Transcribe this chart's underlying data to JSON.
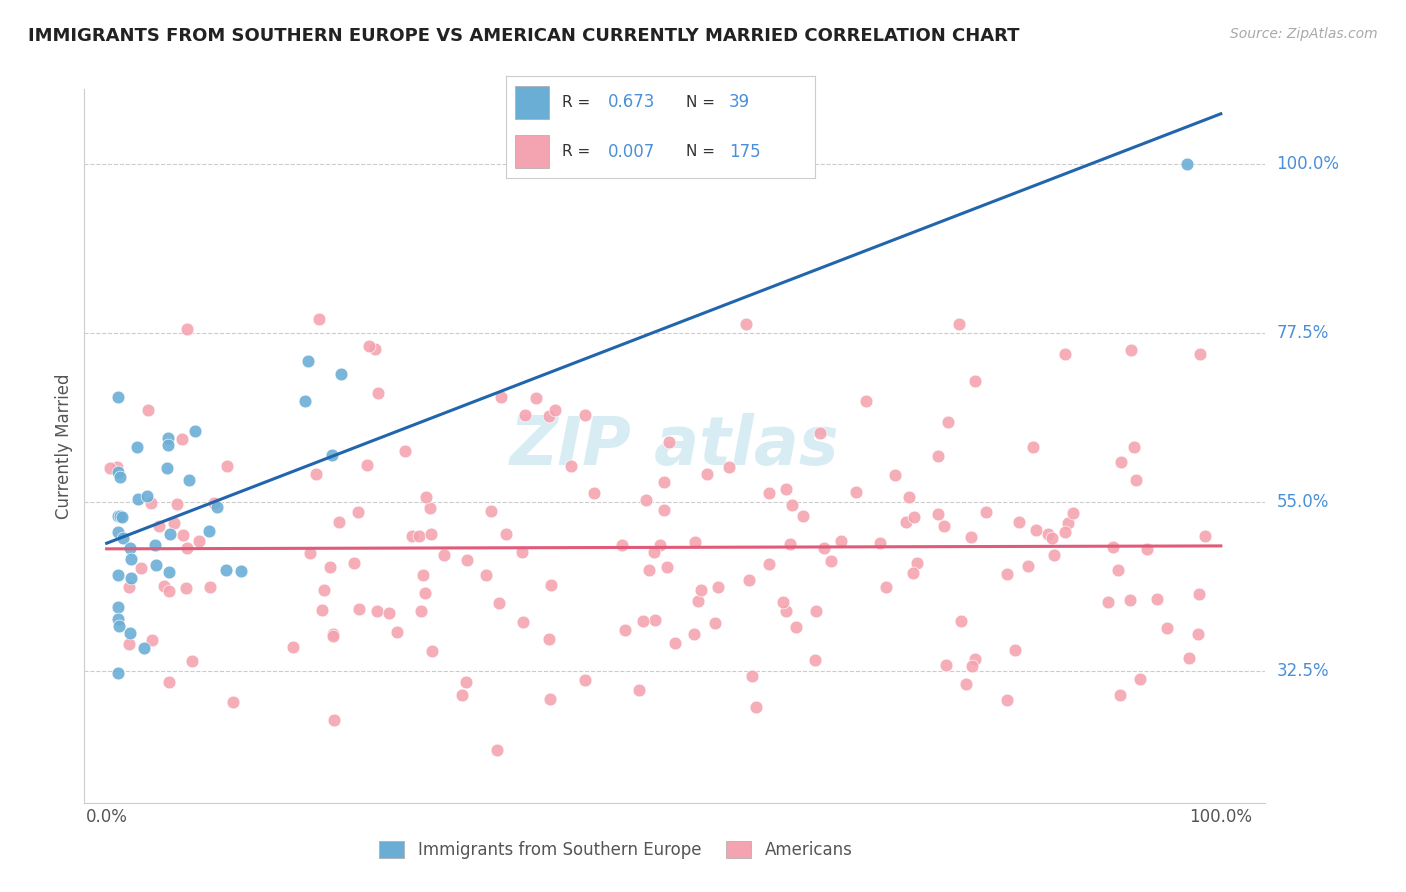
{
  "title": "IMMIGRANTS FROM SOUTHERN EUROPE VS AMERICAN CURRENTLY MARRIED CORRELATION CHART",
  "source": "Source: ZipAtlas.com",
  "ylabel": "Currently Married",
  "yticks": [
    "100.0%",
    "77.5%",
    "55.0%",
    "32.5%"
  ],
  "ytick_values": [
    1.0,
    0.775,
    0.55,
    0.325
  ],
  "blue_color": "#6aaed6",
  "pink_color": "#f4a4b0",
  "line_blue": "#2166ac",
  "line_pink": "#e05a7a",
  "label_color": "#4a90d9",
  "watermark_color": "#c8e4f0"
}
